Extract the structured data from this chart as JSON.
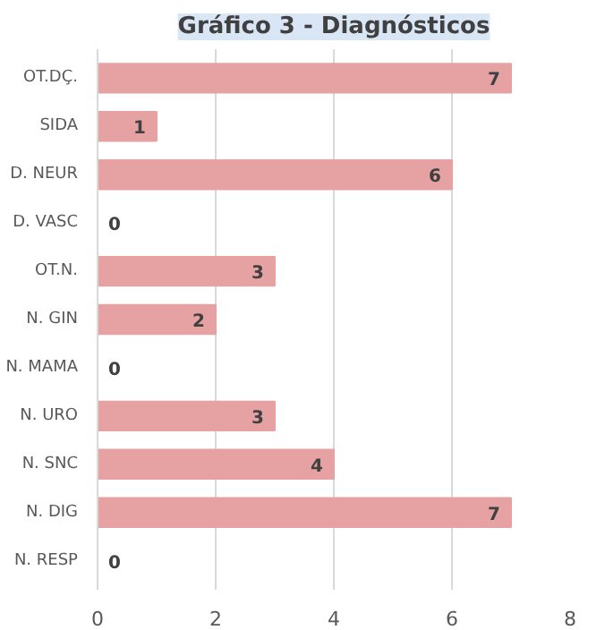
{
  "chart_data": {
    "type": "bar",
    "orientation": "horizontal",
    "title": "Gráfico 3 - Diagnósticos",
    "categories": [
      "OT.DÇ.",
      "SIDA",
      "D. NEUR",
      "D. VASC",
      "OT.N.",
      "N. GIN",
      "N. MAMA",
      "N. URO",
      "N. SNC",
      "N. DIG",
      "N. RESP"
    ],
    "values": [
      7,
      1,
      6,
      0,
      3,
      2,
      0,
      3,
      4,
      7,
      0
    ],
    "color": "#e6a1a3",
    "xlim": [
      0,
      8
    ],
    "xticks": [
      0,
      2,
      4,
      6,
      8
    ],
    "grid": "x",
    "data_labels": true
  }
}
